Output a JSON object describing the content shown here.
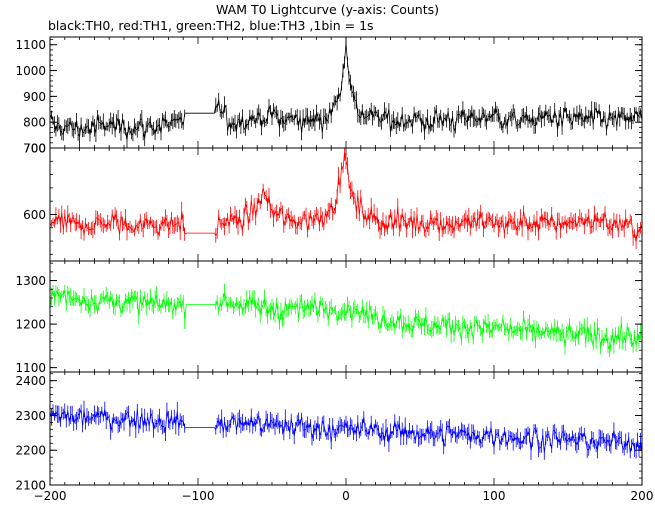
{
  "header": {
    "title": "WAM T0 Lightcurve (y-axis: Counts)",
    "subtitle": "black:TH0, red:TH1, green:TH2, blue:TH3 ,1bin = 1s"
  },
  "chart_data": {
    "type": "line",
    "title": "WAM T0 Lightcurve (y-axis: Counts)",
    "xlim": [
      -200,
      200
    ],
    "xticks": [
      -200,
      -100,
      0,
      100,
      200
    ],
    "grid": false,
    "panels": [
      {
        "name": "TH0",
        "color": "#000000",
        "ylim": [
          700,
          1130
        ],
        "yticks": [
          700,
          800,
          900,
          1000,
          1100
        ],
        "series": {
          "x": [
            -200,
            -190,
            -180,
            -170,
            -160,
            -150,
            -140,
            -130,
            -120,
            -110,
            -109,
            -88,
            -87,
            -80,
            -70,
            -60,
            -50,
            -40,
            -30,
            -20,
            -15,
            -10,
            -6,
            -3,
            -1,
            0,
            1,
            3,
            6,
            10,
            15,
            20,
            30,
            40,
            50,
            60,
            70,
            80,
            90,
            100,
            110,
            120,
            130,
            140,
            150,
            160,
            170,
            180,
            190,
            200
          ],
          "y": [
            790,
            780,
            775,
            780,
            790,
            785,
            780,
            785,
            790,
            795,
            835,
            835,
            865,
            800,
            810,
            815,
            825,
            810,
            810,
            815,
            820,
            845,
            870,
            960,
            1060,
            1100,
            1060,
            950,
            870,
            840,
            820,
            815,
            810,
            810,
            800,
            805,
            810,
            815,
            820,
            825,
            810,
            805,
            815,
            820,
            810,
            815,
            810,
            805,
            810,
            815
          ]
        }
      },
      {
        "name": "TH1",
        "color": "#ff0000",
        "ylim": [
          530,
          700
        ],
        "yticks": [
          600,
          700
        ],
        "series": {
          "x": [
            -200,
            -190,
            -180,
            -170,
            -160,
            -150,
            -140,
            -130,
            -120,
            -110,
            -109,
            -88,
            -87,
            -80,
            -70,
            -60,
            -55,
            -50,
            -40,
            -30,
            -20,
            -15,
            -10,
            -6,
            -3,
            -1,
            0,
            1,
            3,
            6,
            10,
            15,
            20,
            30,
            40,
            50,
            60,
            70,
            80,
            90,
            100,
            110,
            120,
            130,
            140,
            150,
            160,
            170,
            180,
            190,
            200
          ],
          "y": [
            588,
            585,
            583,
            585,
            588,
            584,
            582,
            585,
            586,
            588,
            572,
            572,
            582,
            590,
            592,
            610,
            630,
            605,
            590,
            590,
            595,
            600,
            612,
            630,
            660,
            685,
            690,
            670,
            640,
            615,
            605,
            598,
            592,
            590,
            588,
            588,
            590,
            585,
            588,
            590,
            588,
            585,
            588,
            586,
            585,
            588,
            590,
            592,
            585,
            580,
            575
          ]
        }
      },
      {
        "name": "TH2",
        "color": "#00ff00",
        "ylim": [
          1090,
          1345
        ],
        "yticks": [
          1100,
          1200,
          1300
        ],
        "series": {
          "x": [
            -200,
            -190,
            -180,
            -170,
            -160,
            -150,
            -140,
            -130,
            -120,
            -110,
            -109,
            -88,
            -87,
            -80,
            -70,
            -60,
            -50,
            -40,
            -30,
            -20,
            -10,
            0,
            10,
            20,
            30,
            40,
            50,
            60,
            70,
            80,
            90,
            100,
            110,
            120,
            130,
            140,
            150,
            160,
            170,
            180,
            190,
            200
          ],
          "y": [
            1265,
            1262,
            1258,
            1255,
            1252,
            1250,
            1248,
            1245,
            1243,
            1240,
            1245,
            1245,
            1250,
            1248,
            1245,
            1240,
            1238,
            1235,
            1232,
            1238,
            1235,
            1240,
            1228,
            1215,
            1210,
            1205,
            1200,
            1198,
            1195,
            1195,
            1190,
            1190,
            1185,
            1182,
            1180,
            1178,
            1175,
            1175,
            1172,
            1170,
            1168,
            1165
          ]
        }
      },
      {
        "name": "TH3",
        "color": "#0000ff",
        "ylim": [
          2100,
          2425
        ],
        "yticks": [
          2100,
          2200,
          2300,
          2400
        ],
        "series": {
          "x": [
            -200,
            -190,
            -180,
            -170,
            -160,
            -150,
            -140,
            -130,
            -120,
            -110,
            -109,
            -88,
            -87,
            -80,
            -70,
            -60,
            -50,
            -40,
            -30,
            -20,
            -10,
            0,
            10,
            20,
            30,
            40,
            50,
            60,
            70,
            80,
            90,
            100,
            110,
            120,
            130,
            140,
            150,
            160,
            170,
            180,
            190,
            200
          ],
          "y": [
            2300,
            2298,
            2295,
            2293,
            2290,
            2290,
            2288,
            2286,
            2285,
            2283,
            2265,
            2265,
            2270,
            2275,
            2278,
            2275,
            2272,
            2270,
            2268,
            2265,
            2262,
            2260,
            2258,
            2256,
            2254,
            2252,
            2250,
            2248,
            2246,
            2244,
            2242,
            2240,
            2238,
            2236,
            2234,
            2232,
            2230,
            2228,
            2226,
            2224,
            2222,
            2220
          ]
        }
      }
    ]
  }
}
